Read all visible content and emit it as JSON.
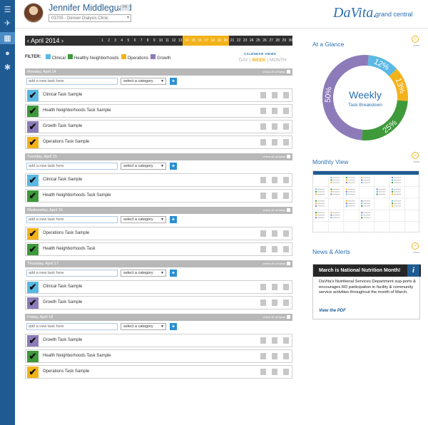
{
  "user": {
    "name": "Jennifer Middleguard",
    "badge": "FA",
    "clinic": "03705 - Denver Dialysis Clinic"
  },
  "brand": {
    "logo": "DaVita.",
    "sub": "grand central"
  },
  "datebar": {
    "month": "April 2014",
    "days": [
      "1",
      "2",
      "3",
      "4",
      "5",
      "6",
      "7",
      "8",
      "9",
      "10",
      "11",
      "12",
      "13",
      "14",
      "15",
      "16",
      "17",
      "18",
      "19",
      "20",
      "21",
      "22",
      "23",
      "24",
      "25",
      "26",
      "27",
      "28",
      "29",
      "30"
    ],
    "selected_week": [
      "14",
      "15",
      "16",
      "17",
      "18",
      "19",
      "20"
    ]
  },
  "filter": {
    "label": "FILTER:",
    "items": [
      {
        "name": "Clinical",
        "color": "#5bb8e4"
      },
      {
        "name": "Healthy Neighborhoods",
        "color": "#3e9a3a"
      },
      {
        "name": "Operations",
        "color": "#f3b21a"
      },
      {
        "name": "Growth",
        "color": "#8c7bb8"
      }
    ]
  },
  "calendar_views": {
    "title": "CALENDAR VIEWS",
    "day": "DAY",
    "week": "WEEK",
    "month": "MONTH",
    "sep": "|"
  },
  "add_placeholder": "add a new task here",
  "category_placeholder": "select a category",
  "check_all": "check off all tasks",
  "days": [
    {
      "header": "Monday, April 14",
      "tasks": [
        {
          "name": "Clinical Task Sample",
          "color": "#5bb8e4"
        },
        {
          "name": "Health Neighborhoods Task Sample",
          "color": "#3e9a3a"
        },
        {
          "name": "Growth Task Sample",
          "color": "#8c7bb8"
        },
        {
          "name": "Operations Task Sample",
          "color": "#f3b21a"
        }
      ]
    },
    {
      "header": "Tuesday, April 15",
      "tasks": [
        {
          "name": "Clinical Task Sample",
          "color": "#5bb8e4"
        },
        {
          "name": "Health Neighborhoods Task Sample",
          "color": "#3e9a3a"
        }
      ]
    },
    {
      "header": "Wednesday, April 16",
      "tasks": [
        {
          "name": "Operations Task Sample",
          "color": "#f3b21a"
        },
        {
          "name": "Health Neighborhoods Task",
          "color": "#3e9a3a"
        }
      ]
    },
    {
      "header": "Thursday, April 17",
      "tasks": [
        {
          "name": "Clinical Task Sample",
          "color": "#5bb8e4"
        },
        {
          "name": "Growth Task Sample",
          "color": "#8c7bb8"
        }
      ]
    },
    {
      "header": "Friday, April 18",
      "tasks": [
        {
          "name": "Growth Task Sample",
          "color": "#8c7bb8"
        },
        {
          "name": "Health Neighborhoods Task Sample",
          "color": "#3e9a3a"
        },
        {
          "name": "Operations Task Sample",
          "color": "#f3b21a"
        }
      ]
    }
  ],
  "at_a_glance": {
    "title": "At a Glance",
    "close": "close",
    "center_title": "Weekly",
    "center_sub": "Task Breakdown"
  },
  "chart_data": {
    "type": "pie",
    "title": "Weekly",
    "subtitle": "Task Breakdown",
    "slices": [
      {
        "label": "Clinical",
        "value": 12,
        "text": "12%",
        "color": "#5bb8e4"
      },
      {
        "label": "Operations",
        "value": 13,
        "text": "13%",
        "color": "#f3b21a"
      },
      {
        "label": "Healthy Neighborhoods",
        "value": 25,
        "text": "25%",
        "color": "#3e9a3a"
      },
      {
        "label": "Growth",
        "value": 50,
        "text": "50%",
        "color": "#8c7bb8"
      }
    ]
  },
  "monthly_view": {
    "title": "Monthly View",
    "close": "close"
  },
  "news": {
    "title": "News & Alerts",
    "close": "close",
    "headline": "March is National Nutrition Month!",
    "body": "DaVita's Nutritional Services Department sup-ports & encourages RD participation in facility & community service activities throughout the month of March.",
    "link": "View the PDF"
  }
}
